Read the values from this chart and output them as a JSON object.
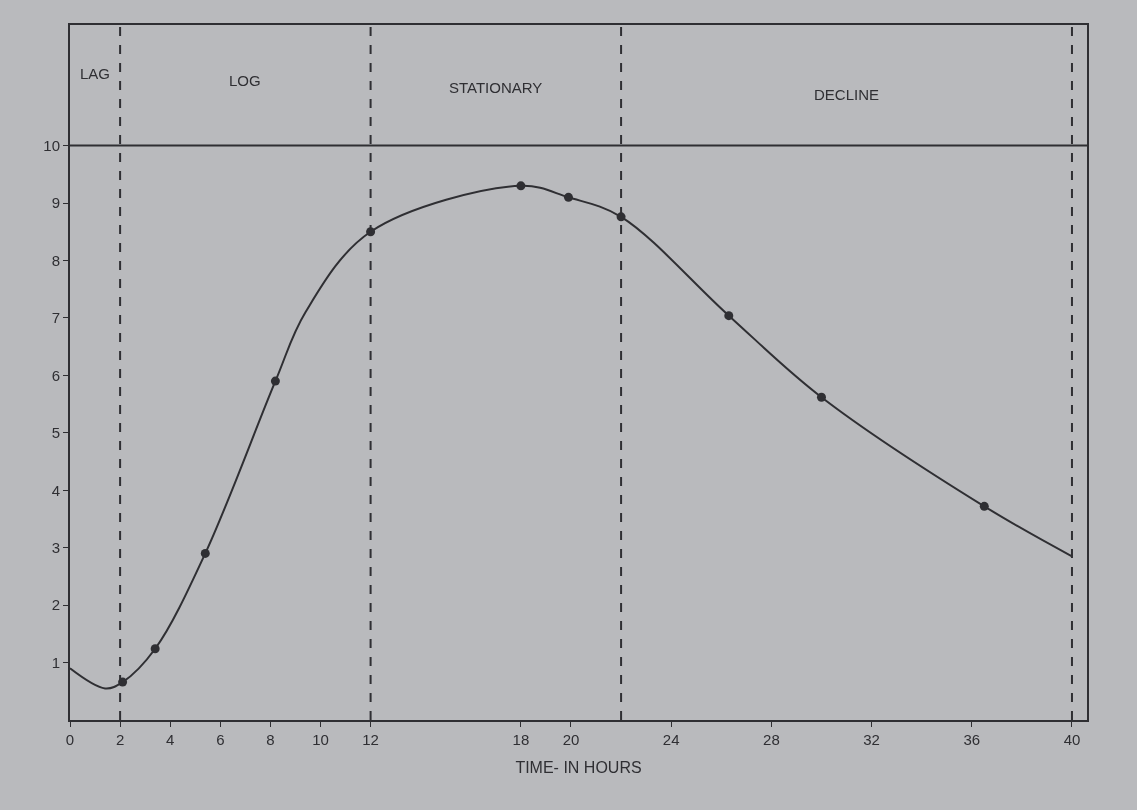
{
  "chart_data": {
    "type": "line",
    "xlabel": "TIME- IN HOURS",
    "xlim": [
      0,
      40.6
    ],
    "xticks": [
      0,
      2,
      4,
      6,
      8,
      10,
      12,
      18,
      20,
      24,
      28,
      32,
      36,
      40
    ],
    "ylim": [
      0,
      12.1
    ],
    "yticks": [
      1,
      2,
      3,
      4,
      5,
      6,
      7,
      8,
      9,
      10
    ],
    "grid": false,
    "series": [
      {
        "color": "#2f2f33",
        "marker": "none",
        "line_style": "solid",
        "x": [
          0,
          1.4,
          2.1,
          3.4,
          5.4,
          8.2,
          9.4,
          12,
          18,
          19.9,
          22,
          26.3,
          30,
          36.5,
          40
        ],
        "values": [
          0.9,
          0.55,
          0.66,
          1.24,
          2.9,
          5.9,
          7.1,
          8.5,
          9.3,
          9.1,
          8.76,
          7.04,
          5.62,
          3.72,
          2.85
        ]
      },
      {
        "type": "scatter",
        "color": "#2f2f33",
        "marker": "circle",
        "x": [
          2.1,
          3.4,
          5.4,
          8.2,
          12,
          18,
          19.9,
          22,
          26.3,
          30,
          36.5
        ],
        "values": [
          0.66,
          1.24,
          2.9,
          5.9,
          8.5,
          9.3,
          9.1,
          8.76,
          7.04,
          5.62,
          3.72
        ]
      }
    ],
    "ref_lines": [
      {
        "axis": "y",
        "value": 10,
        "color": "#2f2f33",
        "line_style": "solid"
      },
      {
        "axis": "x",
        "value": 2,
        "color": "#2f2f33",
        "line_style": "dashed"
      },
      {
        "axis": "x",
        "value": 12,
        "color": "#2f2f33",
        "line_style": "dashed"
      },
      {
        "axis": "x",
        "value": 22,
        "color": "#2f2f33",
        "line_style": "dashed"
      },
      {
        "axis": "x",
        "value": 40,
        "color": "#2f2f33",
        "line_style": "dashed"
      }
    ],
    "annotations": [
      "LAG",
      "LOG",
      "STATIONARY",
      "DECLINE"
    ]
  }
}
